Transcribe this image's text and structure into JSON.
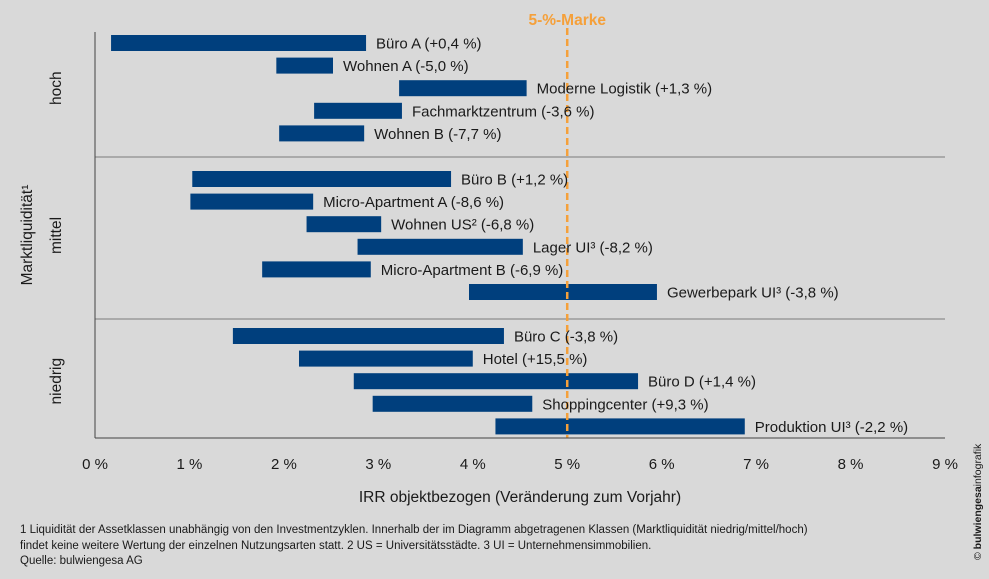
{
  "chart_data": {
    "type": "range-bar",
    "title": "",
    "xlabel": "IRR objektbezogen (Veränderung zum Vorjahr)",
    "ylabel": "Marktliquidität¹",
    "xlim": [
      0,
      9
    ],
    "xticks": [
      0,
      1,
      2,
      3,
      4,
      5,
      6,
      7,
      8,
      9
    ],
    "xtick_labels": [
      "0 %",
      "1 %",
      "2 %",
      "3 %",
      "4 %",
      "5 %",
      "6 %",
      "7 %",
      "8 %",
      "9 %"
    ],
    "reference_line": {
      "value": 5,
      "label": "5-%-Marke",
      "color": "#f5a03a"
    },
    "bar_color": "#003f7d",
    "groups": [
      {
        "name": "hoch",
        "bars": [
          {
            "label": "Büro A (+0,4 %)",
            "start": 0.17,
            "end": 2.87
          },
          {
            "label": "Wohnen A (-5,0 %)",
            "start": 1.92,
            "end": 2.52
          },
          {
            "label": "Moderne Logistik (+1,3 %)",
            "start": 3.22,
            "end": 4.57
          },
          {
            "label": "Fachmarktzentrum (-3,6 %)",
            "start": 2.32,
            "end": 3.25
          },
          {
            "label": "Wohnen B (-7,7 %)",
            "start": 1.95,
            "end": 2.85
          }
        ]
      },
      {
        "name": "mittel",
        "bars": [
          {
            "label": "Büro B (+1,2 %)",
            "start": 1.03,
            "end": 3.77
          },
          {
            "label": "Micro-Apartment A (-8,6 %)",
            "start": 1.01,
            "end": 2.31
          },
          {
            "label": "Wohnen US² (-6,8 %)",
            "start": 2.24,
            "end": 3.03
          },
          {
            "label": "Lager UI³ (-8,2 %)",
            "start": 2.78,
            "end": 4.53
          },
          {
            "label": "Micro-Apartment B (-6,9 %)",
            "start": 1.77,
            "end": 2.92
          },
          {
            "label": "Gewerbepark UI³ (-3,8 %)",
            "start": 3.96,
            "end": 5.95
          }
        ]
      },
      {
        "name": "niedrig",
        "bars": [
          {
            "label": "Büro C (-3,8 %)",
            "start": 1.46,
            "end": 4.33
          },
          {
            "label": "Hotel (+15,5 %)",
            "start": 2.16,
            "end": 4.0
          },
          {
            "label": "Büro D (+1,4 %)",
            "start": 2.74,
            "end": 5.75
          },
          {
            "label": "Shoppingcenter (+9,3 %)",
            "start": 2.94,
            "end": 4.63
          },
          {
            "label": "Produktion UI³ (-2,2 %)",
            "start": 4.24,
            "end": 6.88
          }
        ]
      }
    ]
  },
  "footnote": {
    "line1": "1 Liquidität der Assetklassen unabhängig von den Investmentzyklen. Innerhalb der im Diagramm abgetragenen Klassen (Marktliquidität niedrig/mittel/hoch)",
    "line2": "findet keine weitere Wertung der einzelnen Nutzungsarten statt. 2 US = Universitätsstädte. 3 UI = Unternehmensimmobilien.",
    "source": "Quelle: bulwiengesa AG"
  },
  "credit": {
    "prefix": "© ",
    "brand": "bulwiengesa",
    "suffix": "infografik"
  }
}
